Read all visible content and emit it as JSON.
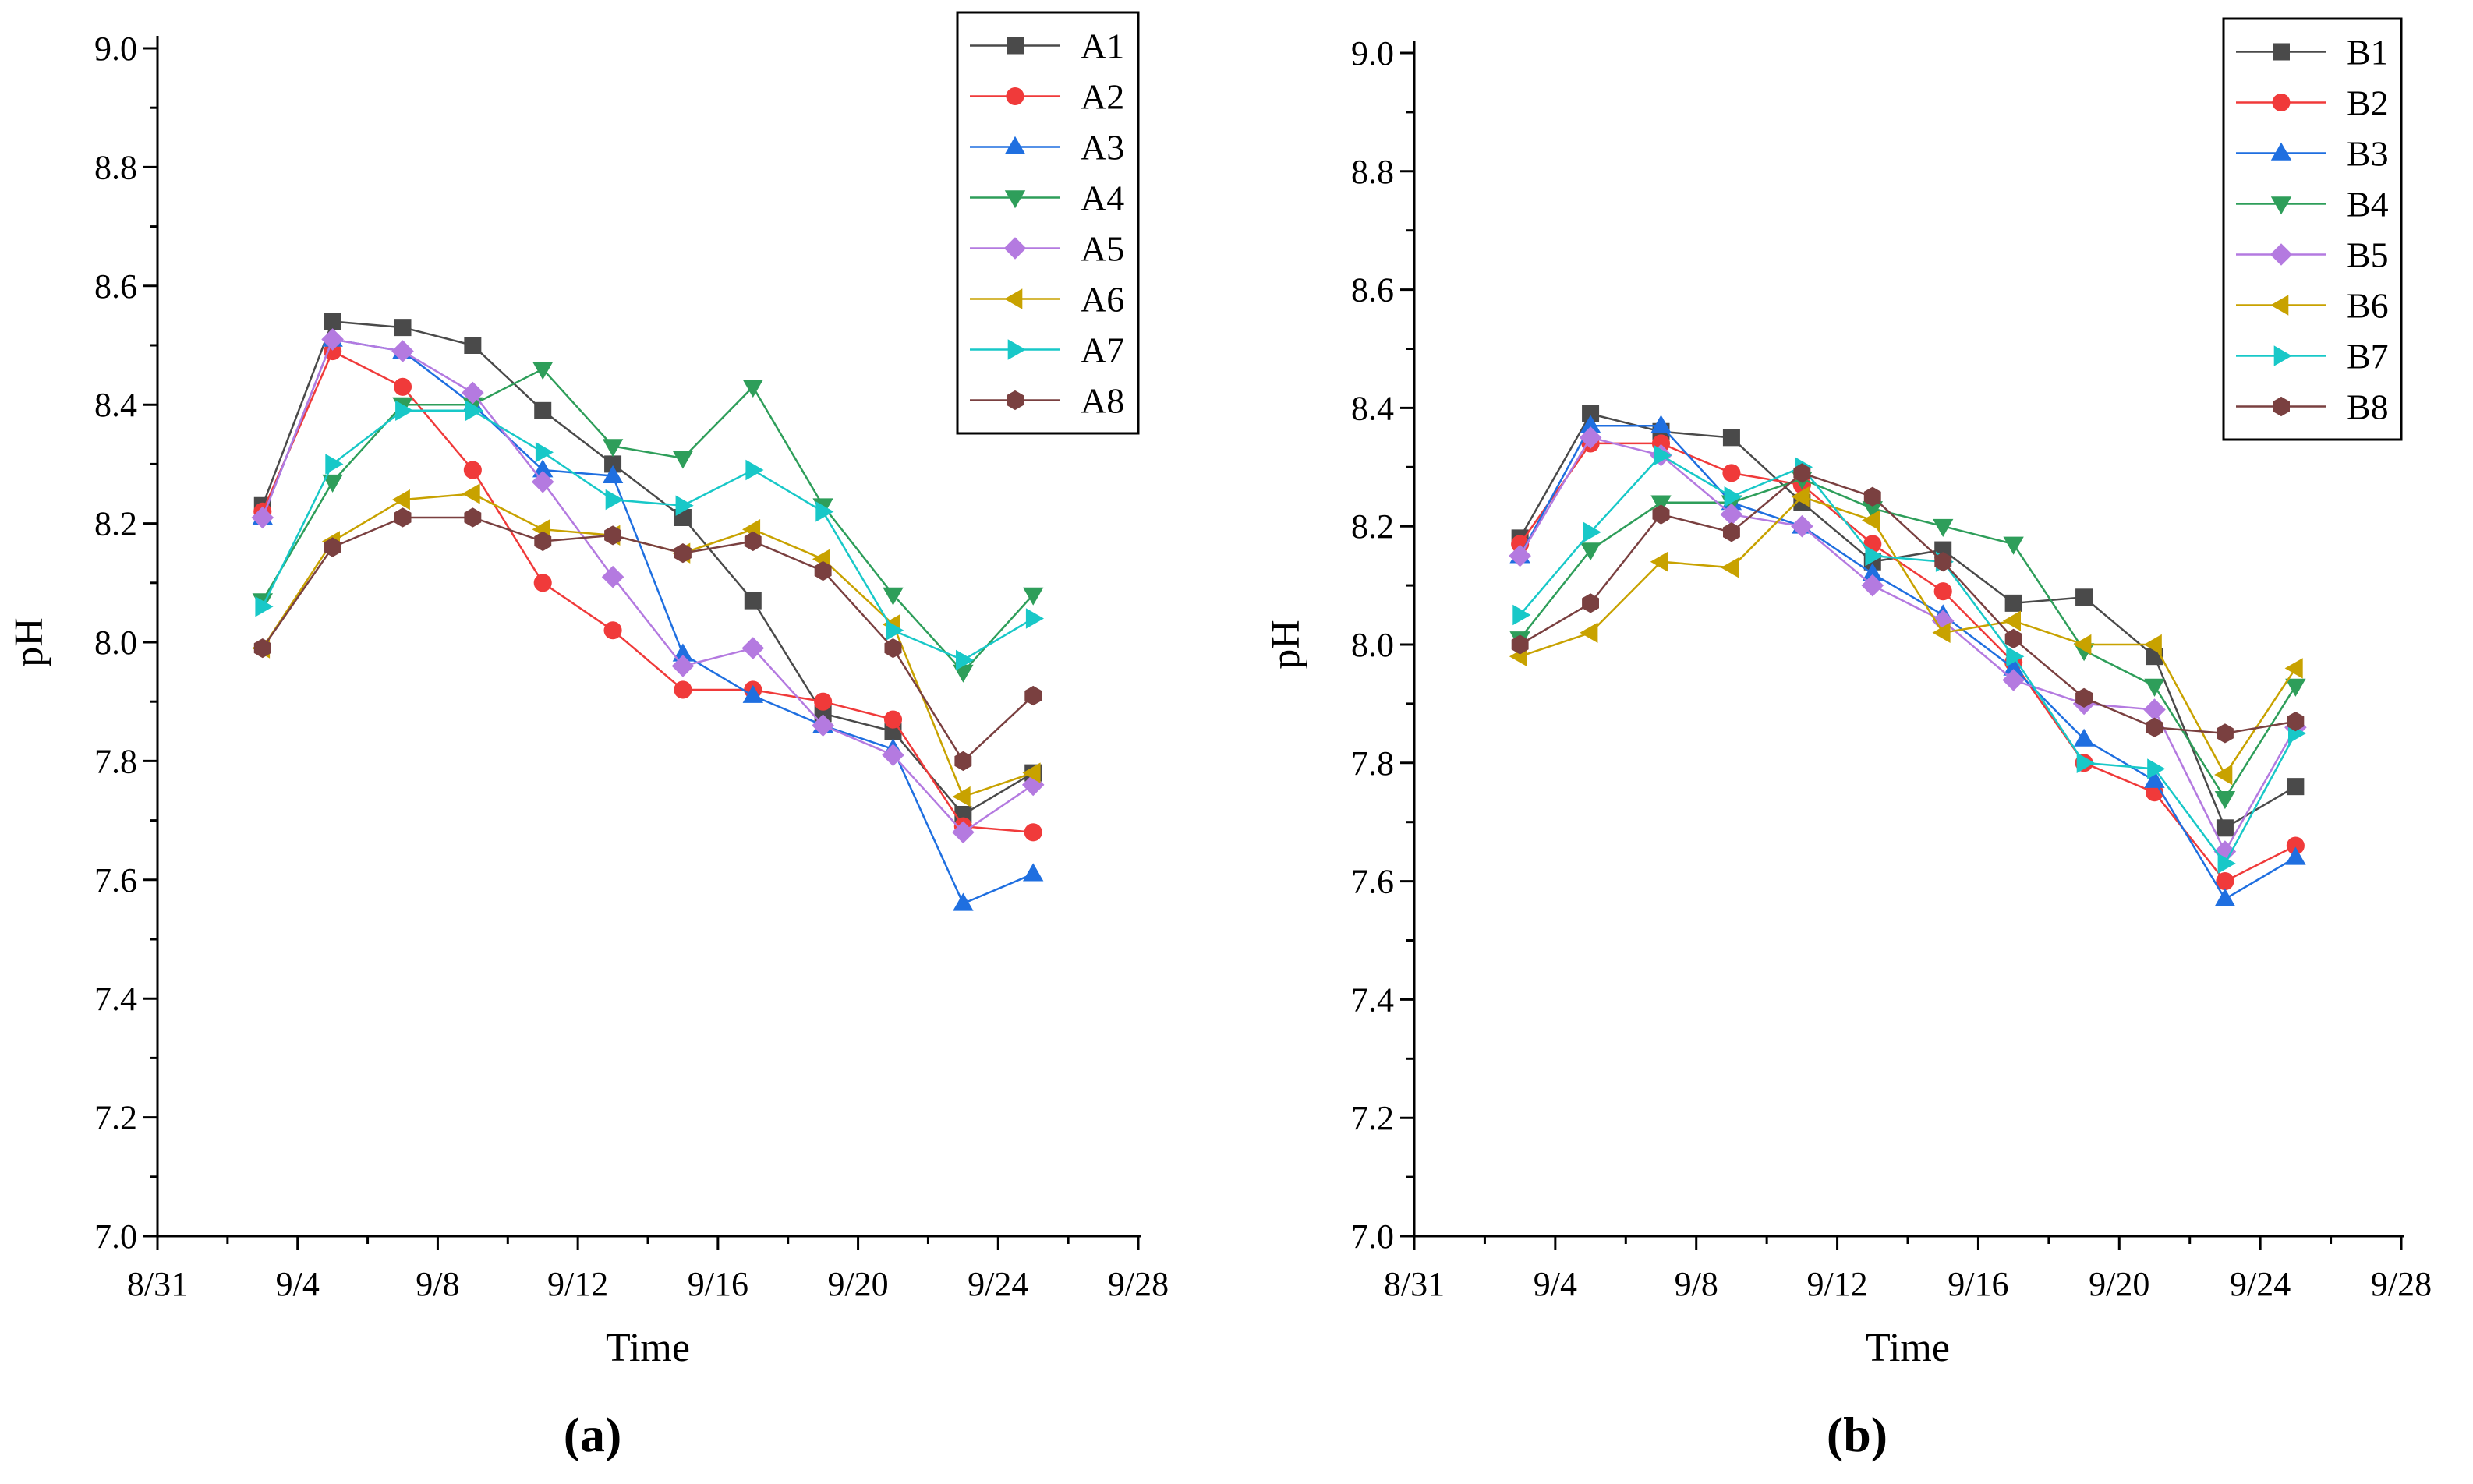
{
  "figure": {
    "panel_labels": [
      "(a)",
      "(b)"
    ]
  },
  "chart_data": [
    {
      "type": "line",
      "panel": "(a)",
      "xlabel": "Time",
      "ylabel": "pH",
      "x_tick_labels": [
        "8/31",
        "9/4",
        "9/8",
        "9/12",
        "9/16",
        "9/20",
        "9/24",
        "9/28"
      ],
      "y_tick_labels": [
        "7.0",
        "7.2",
        "7.4",
        "7.6",
        "7.8",
        "8.0",
        "8.2",
        "8.4",
        "8.6",
        "8.8",
        "9.0"
      ],
      "xlim": [
        0,
        28
      ],
      "ylim": [
        7.0,
        9.0
      ],
      "x": [
        3,
        5,
        7,
        9,
        11,
        13,
        15,
        17,
        19,
        21,
        23,
        25
      ],
      "legend_position": "top-right",
      "series": [
        {
          "name": "A1",
          "color": "#4a4a4a",
          "marker": "square",
          "values": [
            8.23,
            8.54,
            8.53,
            8.5,
            8.39,
            8.3,
            8.21,
            8.07,
            7.88,
            7.85,
            7.71,
            7.78
          ]
        },
        {
          "name": "A2",
          "color": "#f03a3a",
          "marker": "circle",
          "values": [
            8.22,
            8.49,
            8.43,
            8.29,
            8.1,
            8.02,
            7.92,
            7.92,
            7.9,
            7.87,
            7.69,
            7.68
          ]
        },
        {
          "name": "A3",
          "color": "#1f6fe0",
          "marker": "triangle-up",
          "values": [
            8.21,
            8.51,
            8.49,
            8.4,
            8.29,
            8.28,
            7.98,
            7.91,
            7.86,
            7.82,
            7.56,
            7.61
          ]
        },
        {
          "name": "A4",
          "color": "#2e9e5a",
          "marker": "triangle-down",
          "values": [
            8.07,
            8.27,
            8.4,
            8.4,
            8.46,
            8.33,
            8.31,
            8.43,
            8.23,
            8.08,
            7.95,
            8.08
          ]
        },
        {
          "name": "A5",
          "color": "#b47ae0",
          "marker": "diamond",
          "values": [
            8.21,
            8.51,
            8.49,
            8.42,
            8.27,
            8.11,
            7.96,
            7.99,
            7.86,
            7.81,
            7.68,
            7.76
          ]
        },
        {
          "name": "A6",
          "color": "#c8a200",
          "marker": "triangle-left",
          "values": [
            7.99,
            8.17,
            8.24,
            8.25,
            8.19,
            8.18,
            8.15,
            8.19,
            8.14,
            8.03,
            7.74,
            7.78
          ]
        },
        {
          "name": "A7",
          "color": "#18c8c8",
          "marker": "triangle-right",
          "values": [
            8.06,
            8.3,
            8.39,
            8.39,
            8.32,
            8.24,
            8.23,
            8.29,
            8.22,
            8.02,
            7.97,
            8.04
          ]
        },
        {
          "name": "A8",
          "color": "#7a4040",
          "marker": "hexagon",
          "values": [
            7.99,
            8.16,
            8.21,
            8.21,
            8.17,
            8.18,
            8.15,
            8.17,
            8.12,
            7.99,
            7.8,
            7.91
          ]
        }
      ]
    },
    {
      "type": "line",
      "panel": "(b)",
      "xlabel": "Time",
      "ylabel": "pH",
      "x_tick_labels": [
        "8/31",
        "9/4",
        "9/8",
        "9/12",
        "9/16",
        "9/20",
        "9/24",
        "9/28"
      ],
      "y_tick_labels": [
        "7.0",
        "7.2",
        "7.4",
        "7.6",
        "7.8",
        "8.0",
        "8.2",
        "8.4",
        "8.6",
        "8.8",
        "9.0"
      ],
      "xlim": [
        0,
        28
      ],
      "ylim": [
        7.0,
        9.0
      ],
      "x": [
        3,
        5,
        7,
        9,
        11,
        13,
        15,
        17,
        19,
        21,
        23,
        25
      ],
      "legend_position": "top-right",
      "series": [
        {
          "name": "B1",
          "color": "#4a4a4a",
          "marker": "square",
          "values": [
            8.18,
            8.39,
            8.36,
            8.35,
            8.24,
            8.14,
            8.16,
            8.07,
            8.08,
            7.98,
            7.69,
            7.76
          ]
        },
        {
          "name": "B2",
          "color": "#f03a3a",
          "marker": "circle",
          "values": [
            8.17,
            8.34,
            8.34,
            8.29,
            8.27,
            8.17,
            8.09,
            7.97,
            7.8,
            7.75,
            7.6,
            7.66
          ]
        },
        {
          "name": "B3",
          "color": "#1f6fe0",
          "marker": "triangle-up",
          "values": [
            8.15,
            8.37,
            8.37,
            8.24,
            8.2,
            8.12,
            8.05,
            7.96,
            7.84,
            7.77,
            7.57,
            7.64
          ]
        },
        {
          "name": "B4",
          "color": "#2e9e5a",
          "marker": "triangle-down",
          "values": [
            8.01,
            8.16,
            8.24,
            8.24,
            8.28,
            8.23,
            8.2,
            8.17,
            7.99,
            7.93,
            7.74,
            7.93
          ]
        },
        {
          "name": "B5",
          "color": "#b47ae0",
          "marker": "diamond",
          "values": [
            8.15,
            8.35,
            8.32,
            8.22,
            8.2,
            8.1,
            8.04,
            7.94,
            7.9,
            7.89,
            7.65,
            7.86
          ]
        },
        {
          "name": "B6",
          "color": "#c8a200",
          "marker": "triangle-left",
          "values": [
            7.98,
            8.02,
            8.14,
            8.13,
            8.25,
            8.21,
            8.02,
            8.04,
            8.0,
            8.0,
            7.78,
            7.96
          ]
        },
        {
          "name": "B7",
          "color": "#18c8c8",
          "marker": "triangle-right",
          "values": [
            8.05,
            8.19,
            8.32,
            8.25,
            8.3,
            8.15,
            8.14,
            7.98,
            7.8,
            7.79,
            7.63,
            7.85
          ]
        },
        {
          "name": "B8",
          "color": "#7a4040",
          "marker": "hexagon",
          "values": [
            8.0,
            8.07,
            8.22,
            8.19,
            8.29,
            8.25,
            8.14,
            8.01,
            7.91,
            7.86,
            7.85,
            7.87
          ]
        }
      ]
    }
  ]
}
